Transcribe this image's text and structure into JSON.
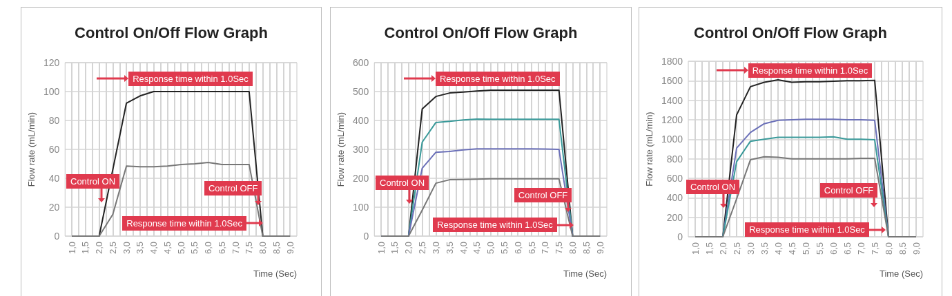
{
  "chart_data": [
    {
      "type": "line",
      "title": "Control On/Off Flow Graph",
      "xlabel": "Time (Sec)",
      "ylabel": "Flow rate (mL/min)",
      "x": [
        1,
        1.5,
        2,
        2.5,
        3,
        3.5,
        4,
        4.5,
        5,
        5.5,
        6,
        6.5,
        7,
        7.5,
        8,
        8.5,
        9
      ],
      "series": [
        {
          "color": "#222222",
          "values": [
            0,
            0,
            0,
            46,
            92,
            97,
            100,
            100,
            100,
            100,
            100,
            100,
            100,
            100,
            0,
            0,
            0
          ]
        },
        {
          "color": "#777777",
          "values": [
            0,
            0,
            0,
            15,
            48.5,
            48,
            48,
            48.5,
            49.5,
            50,
            51,
            49.5,
            49.5,
            49.5,
            0,
            0,
            0
          ]
        }
      ],
      "xlim": [
        0.75,
        9.25
      ],
      "xticks": [
        {
          "value": 1,
          "label": "1,0"
        },
        {
          "value": 1.25,
          "label": null
        },
        {
          "value": 1.5,
          "label": "1,5"
        },
        {
          "value": 1.75,
          "label": null
        },
        {
          "value": 2,
          "label": "2,0"
        },
        {
          "value": 2.25,
          "label": null
        },
        {
          "value": 2.5,
          "label": "2,5"
        },
        {
          "value": 2.75,
          "label": null
        },
        {
          "value": 3,
          "label": "3,0"
        },
        {
          "value": 3.25,
          "label": null
        },
        {
          "value": 3.5,
          "label": "3,5"
        },
        {
          "value": 3.75,
          "label": null
        },
        {
          "value": 4,
          "label": "4,0"
        },
        {
          "value": 4.25,
          "label": null
        },
        {
          "value": 4.5,
          "label": "4,5"
        },
        {
          "value": 4.75,
          "label": null
        },
        {
          "value": 5,
          "label": "5,0"
        },
        {
          "value": 5.25,
          "label": null
        },
        {
          "value": 5.5,
          "label": "5,5"
        },
        {
          "value": 5.75,
          "label": null
        },
        {
          "value": 6,
          "label": "6,0"
        },
        {
          "value": 6.25,
          "label": null
        },
        {
          "value": 6.5,
          "label": "6,5"
        },
        {
          "value": 6.75,
          "label": null
        },
        {
          "value": 7,
          "label": "7,0"
        },
        {
          "value": 7.25,
          "label": null
        },
        {
          "value": 7.5,
          "label": "7,5"
        },
        {
          "value": 7.75,
          "label": null
        },
        {
          "value": 8,
          "label": "8,0"
        },
        {
          "value": 8.25,
          "label": null
        },
        {
          "value": 8.5,
          "label": "8,5"
        },
        {
          "value": 8.75,
          "label": null
        },
        {
          "value": 9,
          "label": "9,0"
        }
      ],
      "ylim": [
        0,
        120
      ],
      "yticks": [
        0,
        20,
        40,
        60,
        80,
        100,
        120
      ],
      "grid": true,
      "annotations": [
        "Response time within 1.0Sec",
        "Control ON",
        "Control OFF",
        "Response time within 1.0Sec"
      ]
    },
    {
      "type": "line",
      "title": "Control On/Off Flow Graph",
      "xlabel": "Time (Sec)",
      "ylabel": "Flow rate (mL/min)",
      "x": [
        1,
        1.5,
        2,
        2.5,
        3,
        3.5,
        4,
        4.5,
        5,
        5.5,
        6,
        6.5,
        7,
        7.5,
        8,
        8.5,
        9
      ],
      "series": [
        {
          "color": "#222222",
          "values": [
            0,
            0,
            0,
            440,
            483,
            495,
            498,
            502,
            505,
            505,
            505,
            505,
            505,
            505,
            0,
            0,
            0
          ]
        },
        {
          "color": "#3a9a9a",
          "values": [
            0,
            0,
            0,
            325,
            393,
            397,
            402,
            405,
            404,
            404,
            404,
            404,
            404,
            404,
            0,
            0,
            0
          ]
        },
        {
          "color": "#6b70b8",
          "values": [
            0,
            0,
            0,
            235,
            290,
            293,
            298,
            302,
            302,
            302,
            302,
            302,
            301,
            300,
            0,
            0,
            0
          ]
        },
        {
          "color": "#777777",
          "values": [
            0,
            0,
            0,
            90,
            183,
            195,
            196,
            197,
            198,
            198,
            198,
            198,
            198,
            198,
            0,
            0,
            0
          ]
        }
      ],
      "xlim": [
        0.75,
        9.25
      ],
      "xticks": [
        {
          "value": 1,
          "label": "1,0"
        },
        {
          "value": 1.25,
          "label": null
        },
        {
          "value": 1.5,
          "label": "1,5"
        },
        {
          "value": 1.75,
          "label": null
        },
        {
          "value": 2,
          "label": "2,0"
        },
        {
          "value": 2.25,
          "label": null
        },
        {
          "value": 2.5,
          "label": "2,5"
        },
        {
          "value": 2.75,
          "label": null
        },
        {
          "value": 3,
          "label": "3,0"
        },
        {
          "value": 3.25,
          "label": null
        },
        {
          "value": 3.5,
          "label": "3,5"
        },
        {
          "value": 3.75,
          "label": null
        },
        {
          "value": 4,
          "label": "4,0"
        },
        {
          "value": 4.25,
          "label": null
        },
        {
          "value": 4.5,
          "label": "4,5"
        },
        {
          "value": 4.75,
          "label": null
        },
        {
          "value": 5,
          "label": "5,0"
        },
        {
          "value": 5.25,
          "label": null
        },
        {
          "value": 5.5,
          "label": "5,5"
        },
        {
          "value": 5.75,
          "label": null
        },
        {
          "value": 6,
          "label": "6,0"
        },
        {
          "value": 6.25,
          "label": null
        },
        {
          "value": 6.5,
          "label": "6,5"
        },
        {
          "value": 6.75,
          "label": null
        },
        {
          "value": 7,
          "label": "7,0"
        },
        {
          "value": 7.25,
          "label": null
        },
        {
          "value": 7.5,
          "label": "7,5"
        },
        {
          "value": 7.75,
          "label": null
        },
        {
          "value": 8,
          "label": "8,0"
        },
        {
          "value": 8.25,
          "label": null
        },
        {
          "value": 8.5,
          "label": "8,5"
        },
        {
          "value": 8.75,
          "label": null
        },
        {
          "value": 9,
          "label": "9,0"
        }
      ],
      "ylim": [
        0,
        600
      ],
      "yticks": [
        0,
        100,
        200,
        300,
        400,
        500,
        600
      ],
      "grid": true,
      "annotations": [
        "Response time within 1.0Sec",
        "Control ON",
        "Control OFF",
        "Response time within 1.0Sec"
      ]
    },
    {
      "type": "line",
      "title": "Control On/Off Flow Graph",
      "xlabel": "Time (Sec)",
      "ylabel": "Flow rate (mL/min)",
      "x": [
        1,
        1.5,
        2,
        2.5,
        3,
        3.5,
        4,
        4.5,
        5,
        5.5,
        6,
        6.5,
        7,
        7.5,
        8,
        8.5,
        9
      ],
      "series": [
        {
          "color": "#222222",
          "values": [
            0,
            0,
            0,
            1250,
            1540,
            1585,
            1610,
            1585,
            1590,
            1590,
            1595,
            1600,
            1600,
            1605,
            0,
            0,
            0
          ]
        },
        {
          "color": "#6b70b8",
          "values": [
            0,
            0,
            0,
            910,
            1070,
            1160,
            1195,
            1200,
            1205,
            1205,
            1205,
            1200,
            1200,
            1195,
            0,
            0,
            0
          ]
        },
        {
          "color": "#3a9a9a",
          "values": [
            0,
            0,
            0,
            770,
            980,
            1000,
            1020,
            1020,
            1020,
            1020,
            1025,
            1000,
            1000,
            995,
            0,
            0,
            0
          ]
        },
        {
          "color": "#777777",
          "values": [
            0,
            0,
            0,
            390,
            790,
            820,
            815,
            800,
            800,
            800,
            800,
            800,
            805,
            805,
            0,
            0,
            0
          ]
        }
      ],
      "xlim": [
        0.75,
        9.25
      ],
      "xticks": [
        {
          "value": 1,
          "label": "1,0"
        },
        {
          "value": 1.25,
          "label": null
        },
        {
          "value": 1.5,
          "label": "1,5"
        },
        {
          "value": 1.75,
          "label": null
        },
        {
          "value": 2,
          "label": "2,0"
        },
        {
          "value": 2.25,
          "label": null
        },
        {
          "value": 2.5,
          "label": "2,5"
        },
        {
          "value": 2.75,
          "label": null
        },
        {
          "value": 3,
          "label": "3,0"
        },
        {
          "value": 3.25,
          "label": null
        },
        {
          "value": 3.5,
          "label": "3,5"
        },
        {
          "value": 3.75,
          "label": null
        },
        {
          "value": 4,
          "label": "4,0"
        },
        {
          "value": 4.25,
          "label": null
        },
        {
          "value": 4.5,
          "label": "4,5"
        },
        {
          "value": 4.75,
          "label": null
        },
        {
          "value": 5,
          "label": "5,0"
        },
        {
          "value": 5.25,
          "label": null
        },
        {
          "value": 5.5,
          "label": "5,5"
        },
        {
          "value": 5.75,
          "label": null
        },
        {
          "value": 6,
          "label": "6,0"
        },
        {
          "value": 6.25,
          "label": null
        },
        {
          "value": 6.5,
          "label": "6,5"
        },
        {
          "value": 6.75,
          "label": null
        },
        {
          "value": 7,
          "label": "7,0"
        },
        {
          "value": 7.25,
          "label": null
        },
        {
          "value": 7.5,
          "label": "7,5"
        },
        {
          "value": 7.75,
          "label": null
        },
        {
          "value": 8,
          "label": "8,0"
        },
        {
          "value": 8.25,
          "label": null
        },
        {
          "value": 8.5,
          "label": "8,5"
        },
        {
          "value": 8.75,
          "label": null
        },
        {
          "value": 9,
          "label": "9,0"
        }
      ],
      "ylim": [
        0,
        1800
      ],
      "yticks": [
        0,
        200,
        400,
        600,
        800,
        1000,
        1200,
        1400,
        1600,
        1800
      ],
      "grid": true,
      "annotations": [
        "Response time within 1.0Sec",
        "Control ON",
        "Control OFF",
        "Response time within 1.0Sec"
      ]
    }
  ]
}
